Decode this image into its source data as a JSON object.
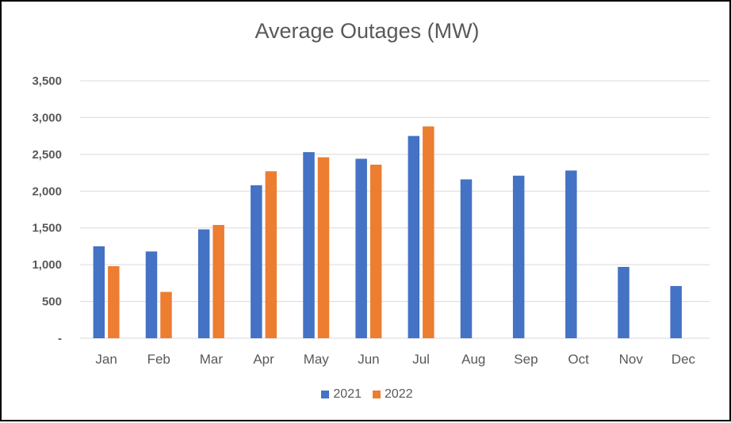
{
  "colors": {
    "s2021": "#4472C4",
    "s2022": "#ED7D31",
    "grid": "#D9D9D9",
    "text": "#595959"
  },
  "chart_data": {
    "type": "bar",
    "title": "Average Outages (MW)",
    "categories": [
      "Jan",
      "Feb",
      "Mar",
      "Apr",
      "May",
      "Jun",
      "Jul",
      "Aug",
      "Sep",
      "Oct",
      "Nov",
      "Dec"
    ],
    "series": [
      {
        "name": "2021",
        "values": [
          1250,
          1180,
          1480,
          2080,
          2530,
          2440,
          2750,
          2160,
          2210,
          2280,
          970,
          710
        ]
      },
      {
        "name": "2022",
        "values": [
          980,
          630,
          1540,
          2270,
          2460,
          2360,
          2880,
          null,
          null,
          null,
          null,
          null
        ]
      }
    ],
    "ylim": [
      0,
      3500
    ],
    "yticks": [
      0,
      500,
      1000,
      1500,
      2000,
      2500,
      3000,
      3500
    ],
    "ytick_labels": [
      "-",
      "500",
      "1,000",
      "1,500",
      "2,000",
      "2,500",
      "3,000",
      "3,500"
    ],
    "xlabel": "",
    "ylabel": "",
    "grid": true,
    "legend": "bottom"
  }
}
